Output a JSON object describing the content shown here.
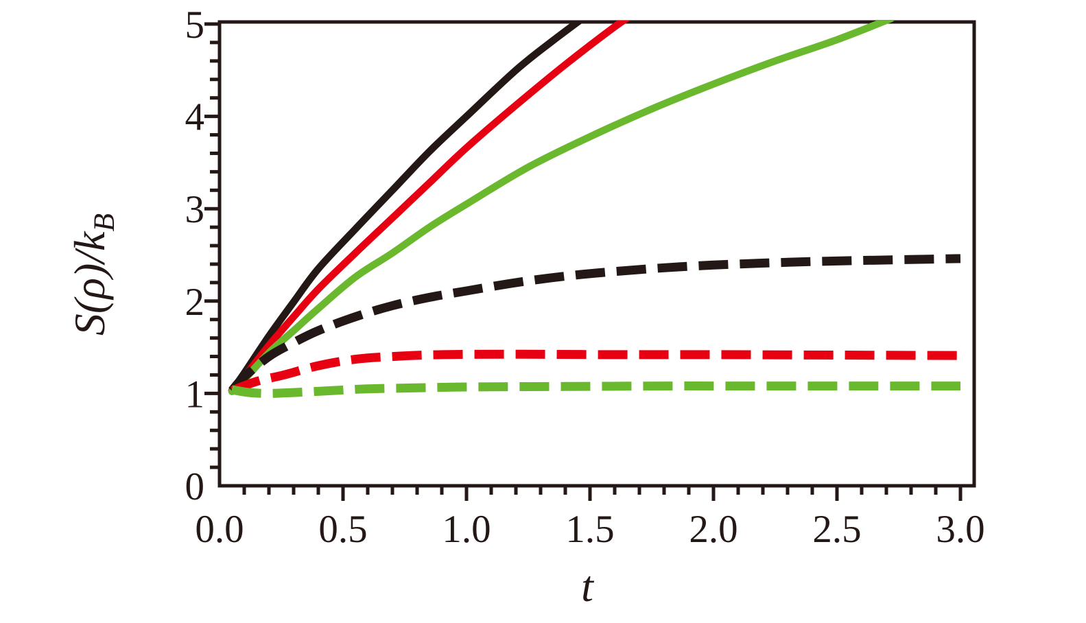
{
  "figure": {
    "background": "#ffffff",
    "axis_color": "#231815"
  },
  "chart_data": {
    "type": "line",
    "title": "",
    "xlabel": "t",
    "ylabel": "S(ρ)/k_B",
    "ylabel_main": "S(ρ)/k",
    "ylabel_sub": "B",
    "xlim": [
      0,
      3.055
    ],
    "ylim": [
      0,
      5.02
    ],
    "grid": false,
    "legend": "none",
    "x_major_ticks": [
      0.0,
      0.5,
      1.0,
      1.5,
      2.0,
      2.5,
      3.0
    ],
    "x_tick_labels": [
      "0.0",
      "0.5",
      "1.0",
      "1.5",
      "2.0",
      "2.5",
      "3.0"
    ],
    "x_minor_step": 0.1,
    "y_major_ticks": [
      0,
      1,
      2,
      3,
      4,
      5
    ],
    "y_tick_labels": [
      "0",
      "1",
      "2",
      "3",
      "4",
      "5"
    ],
    "y_minor_step": 0.2,
    "series": [
      {
        "name": "solid-black",
        "color": "#231815",
        "style": "solid",
        "points": [
          [
            0.05,
            1.03
          ],
          [
            0.1,
            1.22
          ],
          [
            0.2,
            1.62
          ],
          [
            0.3,
            1.99
          ],
          [
            0.4,
            2.35
          ],
          [
            0.55,
            2.78
          ],
          [
            0.7,
            3.2
          ],
          [
            0.85,
            3.62
          ],
          [
            1.0,
            4.0
          ],
          [
            1.2,
            4.5
          ],
          [
            1.35,
            4.82
          ],
          [
            1.5,
            5.12
          ]
        ]
      },
      {
        "name": "solid-red",
        "color": "#e60012",
        "style": "solid",
        "points": [
          [
            0.05,
            1.03
          ],
          [
            0.1,
            1.18
          ],
          [
            0.2,
            1.52
          ],
          [
            0.3,
            1.83
          ],
          [
            0.4,
            2.13
          ],
          [
            0.55,
            2.52
          ],
          [
            0.7,
            2.9
          ],
          [
            0.85,
            3.28
          ],
          [
            1.0,
            3.66
          ],
          [
            1.2,
            4.12
          ],
          [
            1.4,
            4.56
          ],
          [
            1.6,
            4.97
          ],
          [
            1.7,
            5.15
          ]
        ]
      },
      {
        "name": "solid-green",
        "color": "#6ab82e",
        "style": "solid",
        "points": [
          [
            0.05,
            1.02
          ],
          [
            0.1,
            1.15
          ],
          [
            0.2,
            1.44
          ],
          [
            0.3,
            1.68
          ],
          [
            0.4,
            1.92
          ],
          [
            0.55,
            2.26
          ],
          [
            0.7,
            2.52
          ],
          [
            0.85,
            2.8
          ],
          [
            1.0,
            3.05
          ],
          [
            1.25,
            3.45
          ],
          [
            1.5,
            3.78
          ],
          [
            1.75,
            4.08
          ],
          [
            2.0,
            4.35
          ],
          [
            2.25,
            4.6
          ],
          [
            2.5,
            4.83
          ],
          [
            2.72,
            5.06
          ]
        ]
      },
      {
        "name": "dashed-black",
        "color": "#231815",
        "style": "dashed",
        "points": [
          [
            0.05,
            1.03
          ],
          [
            0.1,
            1.18
          ],
          [
            0.2,
            1.4
          ],
          [
            0.3,
            1.55
          ],
          [
            0.4,
            1.68
          ],
          [
            0.55,
            1.83
          ],
          [
            0.7,
            1.95
          ],
          [
            0.85,
            2.04
          ],
          [
            1.0,
            2.11
          ],
          [
            1.2,
            2.2
          ],
          [
            1.4,
            2.27
          ],
          [
            1.6,
            2.32
          ],
          [
            1.8,
            2.36
          ],
          [
            2.0,
            2.39
          ],
          [
            2.3,
            2.42
          ],
          [
            2.6,
            2.44
          ],
          [
            3.0,
            2.46
          ]
        ]
      },
      {
        "name": "dashed-red",
        "color": "#e60012",
        "style": "dashed",
        "points": [
          [
            0.05,
            1.03
          ],
          [
            0.15,
            1.13
          ],
          [
            0.26,
            1.2
          ],
          [
            0.4,
            1.3
          ],
          [
            0.55,
            1.37
          ],
          [
            0.7,
            1.4
          ],
          [
            0.9,
            1.42
          ],
          [
            1.2,
            1.425
          ],
          [
            1.6,
            1.42
          ],
          [
            2.0,
            1.42
          ],
          [
            2.5,
            1.415
          ],
          [
            3.0,
            1.41
          ]
        ]
      },
      {
        "name": "dashed-green",
        "color": "#6ab82e",
        "style": "dashed",
        "points": [
          [
            0.05,
            1.04
          ],
          [
            0.12,
            1.01
          ],
          [
            0.2,
            1.0
          ],
          [
            0.3,
            1.01
          ],
          [
            0.45,
            1.03
          ],
          [
            0.6,
            1.05
          ],
          [
            0.8,
            1.06
          ],
          [
            1.0,
            1.07
          ],
          [
            1.4,
            1.075
          ],
          [
            1.8,
            1.08
          ],
          [
            2.2,
            1.08
          ],
          [
            2.6,
            1.08
          ],
          [
            3.0,
            1.08
          ]
        ]
      }
    ]
  }
}
